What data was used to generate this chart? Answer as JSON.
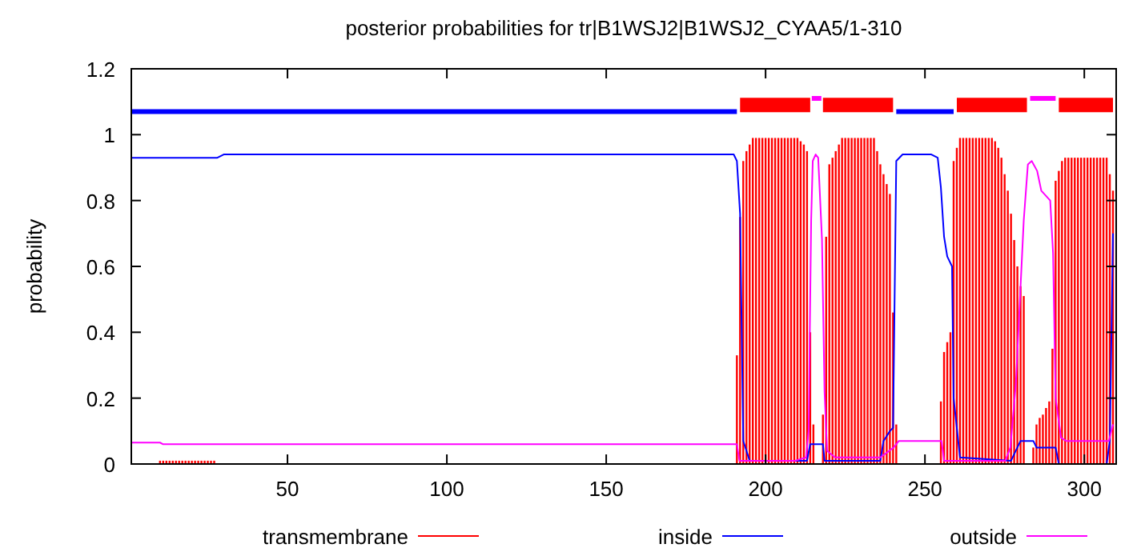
{
  "chart_data": {
    "type": "line",
    "title": "posterior probabilities for tr|B1WSJ2|B1WSJ2_CYAA5/1-310",
    "ylabel": "probability",
    "xlim": [
      1,
      310
    ],
    "xticks": [
      50,
      100,
      150,
      200,
      250,
      300
    ],
    "ylim": [
      0,
      1.2
    ],
    "yticks": [
      0,
      0.2,
      0.4,
      0.6,
      0.8,
      1,
      1.2
    ],
    "legend": "bottom",
    "grid": false,
    "series": [
      {
        "name": "transmembrane",
        "type": "bar",
        "color": "#ff0000",
        "x": [
          10,
          11,
          12,
          13,
          14,
          15,
          16,
          17,
          18,
          19,
          20,
          21,
          22,
          23,
          24,
          25,
          26,
          27,
          191,
          192,
          193,
          194,
          195,
          196,
          197,
          198,
          199,
          200,
          201,
          202,
          203,
          204,
          205,
          206,
          207,
          208,
          209,
          210,
          211,
          212,
          213,
          214,
          215,
          218,
          219,
          220,
          221,
          222,
          223,
          224,
          225,
          226,
          227,
          228,
          229,
          230,
          231,
          232,
          233,
          234,
          235,
          236,
          237,
          238,
          239,
          240,
          241,
          255,
          256,
          257,
          258,
          259,
          260,
          261,
          262,
          263,
          264,
          265,
          266,
          267,
          268,
          269,
          270,
          271,
          272,
          273,
          274,
          275,
          276,
          277,
          278,
          279,
          280,
          281,
          284,
          285,
          286,
          287,
          288,
          289,
          290,
          291,
          292,
          293,
          294,
          295,
          296,
          297,
          298,
          299,
          300,
          301,
          302,
          303,
          304,
          305,
          306,
          307,
          308,
          309
        ],
        "values": [
          0.01,
          0.01,
          0.01,
          0.01,
          0.01,
          0.01,
          0.01,
          0.01,
          0.01,
          0.01,
          0.01,
          0.01,
          0.01,
          0.01,
          0.01,
          0.01,
          0.01,
          0.01,
          0.33,
          0.75,
          0.92,
          0.95,
          0.97,
          0.99,
          0.99,
          0.99,
          0.99,
          0.99,
          0.99,
          0.99,
          0.99,
          0.99,
          0.99,
          0.99,
          0.99,
          0.99,
          0.99,
          0.99,
          0.98,
          0.97,
          0.95,
          0.4,
          0.12,
          0.15,
          0.69,
          0.91,
          0.93,
          0.95,
          0.97,
          0.99,
          0.99,
          0.99,
          0.99,
          0.99,
          0.99,
          0.99,
          0.99,
          0.99,
          0.99,
          0.99,
          0.95,
          0.91,
          0.88,
          0.85,
          0.82,
          0.46,
          0.12,
          0.19,
          0.34,
          0.37,
          0.4,
          0.92,
          0.96,
          0.99,
          0.99,
          0.99,
          0.99,
          0.99,
          0.99,
          0.99,
          0.99,
          0.99,
          0.99,
          0.99,
          0.98,
          0.96,
          0.93,
          0.88,
          0.83,
          0.76,
          0.68,
          0.6,
          0.54,
          0.51,
          0.05,
          0.12,
          0.14,
          0.15,
          0.17,
          0.19,
          0.35,
          0.86,
          0.89,
          0.92,
          0.93,
          0.93,
          0.93,
          0.93,
          0.93,
          0.93,
          0.93,
          0.93,
          0.93,
          0.93,
          0.93,
          0.93,
          0.93,
          0.93,
          0.88,
          0.83
        ]
      },
      {
        "name": "inside",
        "color": "#0000ff",
        "x": [
          1,
          28,
          30,
          190,
          191,
          192,
          193,
          195,
          213,
          214,
          218,
          218.5,
          236,
          237,
          239,
          240,
          241,
          243,
          252,
          254,
          255,
          256,
          257,
          258.5,
          259,
          261,
          277,
          279,
          280,
          284,
          285,
          291,
          292,
          307,
          308,
          309
        ],
        "values": [
          0.93,
          0.93,
          0.94,
          0.94,
          0.92,
          0.76,
          0.07,
          0.01,
          0.01,
          0.06,
          0.06,
          0.01,
          0.01,
          0.07,
          0.1,
          0.11,
          0.92,
          0.94,
          0.94,
          0.93,
          0.84,
          0.69,
          0.63,
          0.6,
          0.2,
          0.02,
          0.01,
          0.05,
          0.07,
          0.07,
          0.05,
          0.05,
          0,
          0,
          0.07,
          0.7
        ]
      },
      {
        "name": "outside",
        "color": "#ff00ff",
        "x": [
          1,
          10,
          11,
          191,
          191.8,
          209.3,
          212.7,
          213.5,
          214.3,
          214.8,
          215.7,
          216.5,
          216.8,
          217.7,
          218.5,
          219.3,
          221.8,
          236,
          240.2,
          241.8,
          255.2,
          256,
          275.2,
          276.8,
          278.5,
          281,
          282.3,
          283.5,
          285.2,
          286.5,
          289.3,
          290.2,
          291,
          292.7,
          294.3,
          307.7,
          309
        ],
        "values": [
          0.065,
          0.065,
          0.06,
          0.06,
          0.01,
          0.01,
          0.02,
          0.1,
          0.74,
          0.92,
          0.94,
          0.93,
          0.87,
          0.68,
          0.22,
          0.04,
          0.02,
          0.02,
          0.05,
          0.07,
          0.07,
          0.01,
          0.01,
          0.05,
          0.24,
          0.74,
          0.91,
          0.92,
          0.89,
          0.83,
          0.8,
          0.64,
          0.2,
          0.08,
          0.07,
          0.07,
          0.12
        ]
      },
      {
        "color": "#0000ff",
        "x": [
          1,
          191,
          216,
          241,
          259
        ],
        "values": [
          1.07,
          1.07,
          null,
          1.07,
          1.07
        ]
      },
      {
        "color": "#ff0000",
        "x": [
          192,
          214,
          215,
          218,
          240,
          250,
          260,
          282,
          287,
          292,
          309
        ],
        "values": [
          1.09,
          1.09,
          null,
          1.09,
          1.09,
          null,
          1.09,
          1.09,
          null,
          1.09,
          1.09
        ]
      },
      {
        "color": "#ff00ff",
        "x": [
          214.5,
          217.5,
          250,
          283,
          291
        ],
        "values": [
          1.11,
          1.11,
          null,
          1.11,
          1.11
        ]
      }
    ]
  }
}
